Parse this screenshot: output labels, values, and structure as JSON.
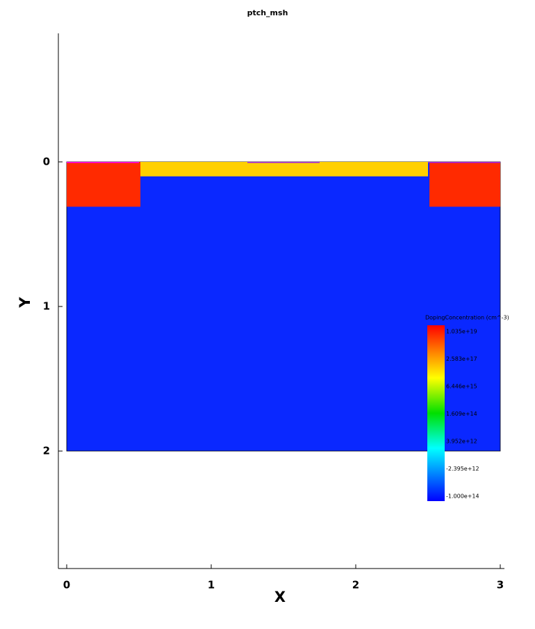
{
  "chart_data": {
    "type": "field",
    "title": "ptch_msh",
    "xlabel": "X",
    "ylabel": "Y",
    "xlim": [
      -0.0577,
      3.0288
    ],
    "ylim": [
      -0.889,
      2.8125
    ],
    "xticks": [
      0,
      1,
      2,
      3
    ],
    "yticks": [
      0,
      1,
      2
    ],
    "regions": [
      {
        "x": [
          0,
          3
        ],
        "y": [
          0,
          2
        ],
        "color": "#0a28ff"
      },
      {
        "x": [
          0.5,
          2.5
        ],
        "y": [
          0,
          0.1
        ],
        "color": "#ffd000"
      },
      {
        "x": [
          0,
          0.51
        ],
        "y": [
          0,
          0.31
        ],
        "color": "#ff2a00"
      },
      {
        "x": [
          2.51,
          3
        ],
        "y": [
          0,
          0.31
        ],
        "color": "#ff2a00"
      },
      {
        "x": [
          0,
          0.5
        ],
        "y": [
          0,
          0.006
        ],
        "color": "#ff00ff"
      },
      {
        "x": [
          1.25,
          1.75
        ],
        "y": [
          0,
          0.006
        ],
        "color": "#a020f0"
      },
      {
        "x": [
          2.5,
          3
        ],
        "y": [
          0,
          0.006
        ],
        "color": "#a020f0"
      }
    ],
    "colorbar": {
      "title": "DopingConcentration (cm^-3)",
      "labels": [
        "1.035e+19",
        "2.583e+17",
        "6.446e+15",
        "1.609e+14",
        "3.952e+12",
        "-2.395e+12",
        "-1.000e+14"
      ]
    }
  }
}
